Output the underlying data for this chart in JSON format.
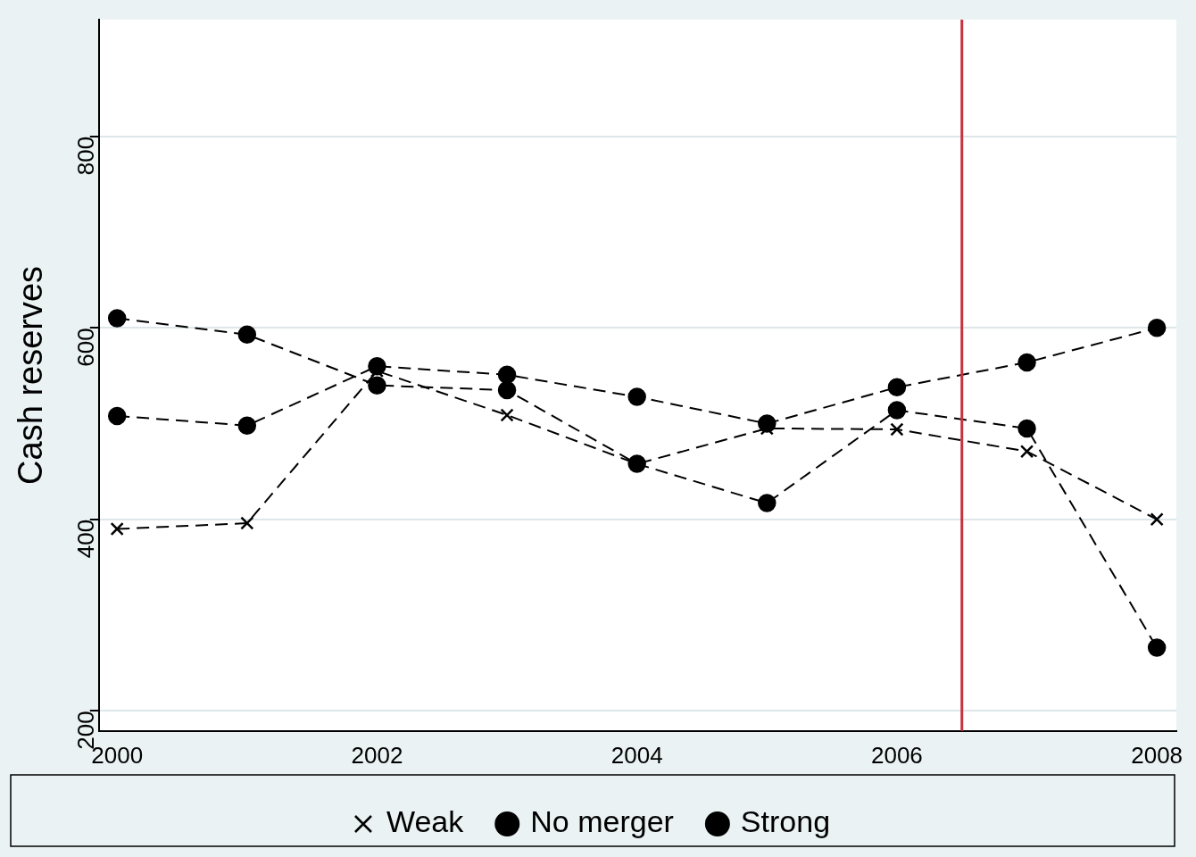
{
  "chart_data": {
    "type": "line",
    "ylabel": "Cash reserves",
    "x": [
      2000,
      2001,
      2002,
      2003,
      2004,
      2005,
      2006,
      2007,
      2008
    ],
    "series": [
      {
        "name": "No merger",
        "color": "#000000",
        "marker": "circle",
        "values": [
          508,
          498,
          560,
          551,
          528,
          500,
          538,
          564,
          600
        ]
      },
      {
        "name": "Weak",
        "color": "#000000",
        "marker": "cross",
        "values": [
          390,
          396,
          555,
          509,
          458,
          495,
          494,
          471,
          400
        ]
      },
      {
        "name": "Strong",
        "color": "#000000",
        "marker": "circle",
        "values": [
          610,
          593,
          540,
          535,
          458,
          417,
          514,
          495,
          266
        ]
      }
    ],
    "xlim": [
      1999.86,
      2008.15
    ],
    "xticks": [
      2000,
      2002,
      2004,
      2006,
      2008
    ],
    "ylim": [
      179,
      922
    ],
    "yticks": [
      200,
      400,
      600,
      800
    ],
    "ref_lines": [
      {
        "axis": "x",
        "value": 2006.5,
        "color": "#c8323c"
      }
    ],
    "grid": "y",
    "legend": "bottom",
    "line_style": "dashed"
  }
}
